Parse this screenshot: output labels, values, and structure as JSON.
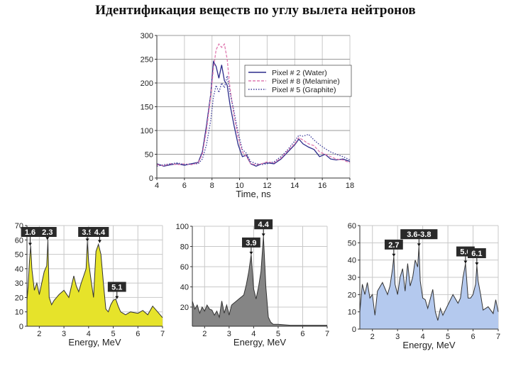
{
  "page": {
    "title": "Идентификация веществ по углу вылета нейтронов"
  },
  "colors": {
    "water": "#2b2b8a",
    "melamine": "#e07ab0",
    "graphite": "#3a3a9a",
    "yellow_fill": "#e6e32a",
    "gray_fill": "#858585",
    "blue_fill": "#b4c9ee",
    "label_box": "#2a2a2a",
    "grid": "#c8c8c8"
  },
  "chart_data": [
    {
      "id": "time",
      "type": "line",
      "title": "",
      "xlabel": "Time, ns",
      "ylabel": "",
      "xlim": [
        4,
        18
      ],
      "ylim": [
        0,
        300
      ],
      "xticks": [
        4,
        6,
        8,
        10,
        12,
        14,
        16,
        18
      ],
      "yticks": [
        0,
        50,
        100,
        150,
        200,
        250,
        300
      ],
      "grid": true,
      "legend_position": "upper right",
      "x": [
        4,
        4.5,
        5,
        5.5,
        6,
        6.5,
        7,
        7.3,
        7.6,
        7.9,
        8.1,
        8.3,
        8.5,
        8.7,
        8.9,
        9.1,
        9.3,
        9.6,
        9.9,
        10.2,
        10.5,
        10.8,
        11.2,
        11.6,
        12,
        12.5,
        13,
        13.5,
        14,
        14.3,
        14.6,
        15,
        15.4,
        15.8,
        16.2,
        16.6,
        17,
        17.5,
        18
      ],
      "series": [
        {
          "name": "Pixel # 2 (Water)",
          "style": "solid",
          "values": [
            30,
            25,
            28,
            30,
            27,
            30,
            33,
            55,
            110,
            175,
            245,
            235,
            210,
            238,
            205,
            195,
            155,
            110,
            70,
            45,
            48,
            30,
            25,
            30,
            32,
            30,
            40,
            55,
            70,
            82,
            72,
            65,
            60,
            45,
            50,
            40,
            38,
            40,
            35
          ]
        },
        {
          "name": "Pixel # 8 (Melamine)",
          "style": "dashed",
          "values": [
            28,
            26,
            30,
            28,
            30,
            28,
            32,
            50,
            100,
            170,
            230,
            270,
            282,
            275,
            282,
            250,
            190,
            130,
            85,
            55,
            45,
            30,
            28,
            30,
            34,
            32,
            42,
            58,
            72,
            85,
            80,
            72,
            68,
            55,
            50,
            45,
            40,
            38,
            32
          ]
        },
        {
          "name": "Pixel # 5 (Graphite)",
          "style": "dotted",
          "values": [
            25,
            28,
            30,
            32,
            28,
            30,
            30,
            40,
            70,
            120,
            170,
            195,
            180,
            200,
            190,
            215,
            180,
            140,
            95,
            60,
            52,
            35,
            30,
            28,
            30,
            34,
            45,
            60,
            78,
            90,
            88,
            92,
            80,
            70,
            62,
            55,
            50,
            45,
            38
          ]
        }
      ]
    },
    {
      "id": "energy-yellow",
      "type": "area",
      "xlabel": "Energy, MeV",
      "xlim": [
        1.5,
        7
      ],
      "ylim": [
        0,
        70
      ],
      "xticks": [
        2,
        3,
        4,
        5,
        6,
        7
      ],
      "yticks": [
        0,
        10,
        20,
        30,
        40,
        50,
        60,
        70
      ],
      "grid": true,
      "fill": "#e6e32a",
      "x": [
        1.5,
        1.55,
        1.6,
        1.65,
        1.7,
        1.8,
        1.9,
        2.0,
        2.1,
        2.2,
        2.3,
        2.35,
        2.4,
        2.5,
        2.6,
        2.7,
        2.8,
        3.0,
        3.2,
        3.4,
        3.5,
        3.6,
        3.7,
        3.8,
        3.9,
        3.95,
        4.0,
        4.1,
        4.2,
        4.3,
        4.4,
        4.5,
        4.6,
        4.7,
        4.8,
        4.9,
        5.0,
        5.1,
        5.2,
        5.3,
        5.5,
        5.7,
        6.0,
        6.2,
        6.4,
        6.6,
        6.8,
        7.0
      ],
      "values": [
        18,
        28,
        45,
        56,
        40,
        25,
        30,
        22,
        30,
        38,
        42,
        60,
        20,
        15,
        18,
        20,
        22,
        25,
        20,
        35,
        28,
        24,
        30,
        35,
        40,
        59,
        45,
        32,
        20,
        52,
        57,
        50,
        30,
        12,
        10,
        15,
        18,
        19,
        14,
        10,
        8,
        10,
        9,
        11,
        8,
        14,
        10,
        6
      ],
      "peaks": [
        {
          "label": "1.6",
          "x": 1.63,
          "y": 56
        },
        {
          "label": "2.3",
          "x": 2.33,
          "y": 60
        },
        {
          "label": "3.9",
          "x": 3.95,
          "y": 59
        },
        {
          "label": "4.4",
          "x": 4.45,
          "y": 58
        },
        {
          "label": "5.1",
          "x": 5.15,
          "y": 19
        }
      ]
    },
    {
      "id": "energy-gray",
      "type": "area",
      "xlabel": "Energy, MeV",
      "xlim": [
        1.5,
        7
      ],
      "ylim": [
        1,
        100
      ],
      "xticks": [
        2,
        3,
        4,
        5,
        6,
        7
      ],
      "yticks": [
        20,
        40,
        60,
        80,
        100
      ],
      "grid": true,
      "fill": "#858585",
      "x": [
        1.5,
        1.6,
        1.7,
        1.8,
        1.9,
        2.0,
        2.1,
        2.2,
        2.3,
        2.4,
        2.5,
        2.6,
        2.7,
        2.8,
        2.9,
        3.0,
        3.1,
        3.2,
        3.3,
        3.4,
        3.5,
        3.6,
        3.7,
        3.8,
        3.9,
        4.0,
        4.1,
        4.2,
        4.3,
        4.4,
        4.5,
        4.6,
        4.7,
        4.8,
        5.0,
        5.5,
        6.0,
        6.5,
        7.0
      ],
      "values": [
        26,
        18,
        22,
        14,
        20,
        16,
        22,
        18,
        17,
        12,
        16,
        10,
        26,
        14,
        22,
        12,
        22,
        24,
        26,
        28,
        30,
        32,
        42,
        55,
        72,
        38,
        28,
        40,
        55,
        90,
        40,
        10,
        5,
        3,
        3,
        2,
        2,
        2,
        2
      ],
      "peaks": [
        {
          "label": "3.9",
          "x": 3.9,
          "y": 72
        },
        {
          "label": "4.4",
          "x": 4.4,
          "y": 90
        }
      ]
    },
    {
      "id": "energy-blue",
      "type": "area",
      "xlabel": "Energy, MeV",
      "xlim": [
        1.5,
        7
      ],
      "ylim": [
        0,
        60
      ],
      "xticks": [
        2,
        3,
        4,
        5,
        6,
        7
      ],
      "yticks": [
        0,
        10,
        20,
        30,
        40,
        50,
        60
      ],
      "grid": true,
      "fill": "#b4c9ee",
      "x": [
        1.5,
        1.6,
        1.7,
        1.8,
        1.9,
        2.0,
        2.1,
        2.2,
        2.4,
        2.6,
        2.7,
        2.8,
        2.85,
        2.9,
        3.0,
        3.1,
        3.2,
        3.3,
        3.4,
        3.5,
        3.6,
        3.7,
        3.8,
        3.85,
        3.9,
        4.0,
        4.1,
        4.2,
        4.4,
        4.5,
        4.6,
        4.7,
        4.8,
        5.0,
        5.2,
        5.4,
        5.5,
        5.6,
        5.7,
        5.8,
        5.9,
        6.0,
        6.1,
        6.15,
        6.2,
        6.3,
        6.4,
        6.6,
        6.8,
        6.9,
        7.0
      ],
      "values": [
        10,
        26,
        20,
        27,
        18,
        20,
        8,
        22,
        27,
        20,
        25,
        35,
        42,
        26,
        20,
        30,
        35,
        22,
        38,
        25,
        30,
        40,
        36,
        48,
        28,
        18,
        17,
        12,
        23,
        10,
        5,
        12,
        8,
        14,
        20,
        15,
        18,
        30,
        38,
        18,
        18,
        20,
        26,
        37,
        28,
        20,
        11,
        13,
        9,
        17,
        10
      ],
      "peaks": [
        {
          "label": "2.7",
          "x": 2.85,
          "y": 42
        },
        {
          "label": "3.6-3.8",
          "x": 3.85,
          "y": 48
        },
        {
          "label": "5.6",
          "x": 5.7,
          "y": 38
        },
        {
          "label": "6.1",
          "x": 6.15,
          "y": 37
        }
      ]
    }
  ]
}
